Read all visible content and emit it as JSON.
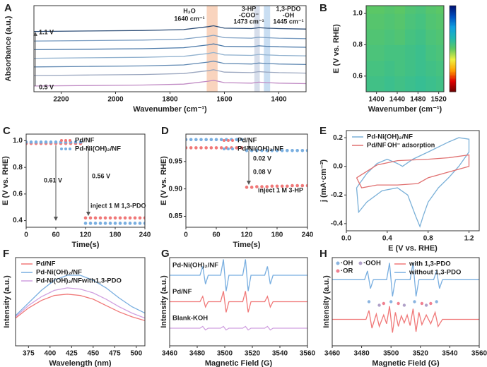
{
  "chart_data": [
    {
      "type": "line",
      "panel": "A",
      "xlabel": "Wavenumber (cm⁻¹)",
      "ylabel": "Absorbance (a.u.)",
      "xlim": [
        2300,
        1300
      ],
      "xticks": [
        2200,
        2000,
        1800,
        1600,
        1400
      ],
      "ylim": [
        0,
        9
      ],
      "x": [
        2300,
        2100,
        1900,
        1750,
        1660,
        1640,
        1600,
        1500,
        1473,
        1445,
        1400,
        1300
      ],
      "highlights": [
        {
          "x": [
            1665,
            1625
          ],
          "color": "#f7c9ae"
        },
        {
          "x": [
            1490,
            1470
          ],
          "color": "#cdd6e6"
        },
        {
          "x": [
            1455,
            1432
          ],
          "color": "#bcd6ef"
        }
      ],
      "series": [
        {
          "color": "#c08ac4",
          "values": [
            0.6,
            0.65,
            0.7,
            0.8,
            1.1,
            1.2,
            0.95,
            0.9,
            1.0,
            0.95,
            0.9,
            0.85
          ]
        },
        {
          "color": "#9aa6bf",
          "values": [
            1.7,
            1.75,
            1.8,
            1.9,
            2.2,
            2.3,
            2.05,
            2.0,
            2.1,
            2.05,
            2.0,
            1.95
          ]
        },
        {
          "color": "#5f88b2",
          "values": [
            2.6,
            2.65,
            2.7,
            2.8,
            3.1,
            3.2,
            2.95,
            2.9,
            3.0,
            2.95,
            2.9,
            2.85
          ]
        },
        {
          "color": "#92b2cf",
          "values": [
            3.5,
            3.55,
            3.6,
            3.7,
            4.0,
            4.1,
            3.85,
            3.8,
            3.9,
            3.85,
            3.8,
            3.75
          ]
        },
        {
          "color": "#4a78a8",
          "values": [
            4.4,
            4.45,
            4.5,
            4.6,
            4.9,
            5.0,
            4.75,
            4.7,
            4.8,
            4.75,
            4.7,
            4.65
          ]
        },
        {
          "color": "#7c9ec2",
          "values": [
            5.3,
            5.35,
            5.4,
            5.5,
            5.8,
            5.9,
            5.65,
            5.6,
            5.7,
            5.65,
            5.6,
            5.55
          ]
        },
        {
          "color": "#2f4f78",
          "values": [
            6.3,
            6.35,
            6.4,
            6.5,
            6.8,
            6.9,
            6.65,
            6.6,
            6.7,
            6.65,
            6.6,
            6.55
          ]
        }
      ],
      "annotations": [
        {
          "text": "H₂O",
          "color": "#222"
        },
        {
          "text": "1640 cm⁻¹",
          "color": "#222"
        },
        {
          "text": "3-HP",
          "color": "#222"
        },
        {
          "text": "-COO⁻",
          "color": "#222"
        },
        {
          "text": "1473 cm⁻¹",
          "color": "#222"
        },
        {
          "text": "1,3-PDO",
          "color": "#222"
        },
        {
          "text": "-OH",
          "color": "#222"
        },
        {
          "text": "1445 cm⁻¹",
          "color": "#222"
        },
        {
          "text": "1.1 V",
          "color": "#222"
        },
        {
          "text": "0.5 V",
          "color": "#222"
        }
      ]
    },
    {
      "type": "heatmap",
      "panel": "B",
      "xlabel": "Wavenumber (cm⁻¹)",
      "ylabel": "E (V vs. RHE)",
      "xlim": [
        1380,
        1530
      ],
      "xticks": [
        1400,
        1440,
        1480,
        1520
      ],
      "ylim": [
        0.5,
        1.05
      ],
      "yticks": [
        0.6,
        0.8,
        {
          "value": 1.0,
          "label": "1.0"
        }
      ],
      "zlim": [
        0,
        1
      ],
      "colors": [
        "#6a0000",
        "#e00000",
        "#ffa000",
        "#f0f040",
        "#60c860",
        "#20b8b0",
        "#10a0e0",
        "#0050c0",
        "#001070"
      ],
      "x": [
        1385,
        1405,
        1425,
        1445,
        1465,
        1485,
        1505,
        1525
      ],
      "y": [
        0.55,
        0.65,
        0.75,
        0.85,
        0.95,
        1.05
      ],
      "z": [
        [
          0.56,
          0.56,
          0.57,
          0.56,
          0.57,
          0.58,
          0.57,
          0.56
        ],
        [
          0.55,
          0.55,
          0.56,
          0.55,
          0.56,
          0.57,
          0.56,
          0.55
        ],
        [
          0.54,
          0.54,
          0.55,
          0.55,
          0.56,
          0.57,
          0.55,
          0.54
        ],
        [
          0.53,
          0.53,
          0.54,
          0.53,
          0.55,
          0.56,
          0.54,
          0.53
        ],
        [
          0.52,
          0.52,
          0.53,
          0.52,
          0.54,
          0.55,
          0.53,
          0.52
        ],
        [
          0.51,
          0.51,
          0.52,
          0.51,
          0.53,
          0.54,
          0.52,
          0.51
        ]
      ]
    },
    {
      "type": "scatter",
      "panel": "C",
      "xlabel": "Time(s)",
      "ylabel": "E (V vs. RHE)",
      "legend": "upper right",
      "xlim": [
        0,
        240
      ],
      "xticks": [
        0,
        60,
        120,
        180,
        240
      ],
      "ylim": [
        0.35,
        1.05
      ],
      "yticks": [
        0.4,
        0.6,
        0.8,
        {
          "value": 1.0,
          "label": "1.0"
        }
      ],
      "x": [
        0,
        10,
        20,
        30,
        40,
        50,
        60,
        70,
        80,
        90,
        100,
        110,
        120,
        130,
        140,
        150,
        160,
        170,
        180,
        190,
        200,
        210,
        220,
        230,
        240
      ],
      "series": [
        {
          "name": "Pd/NF",
          "color": "#f07878",
          "values": [
            0.98,
            0.98,
            0.98,
            0.98,
            0.98,
            0.98,
            0.98,
            0.98,
            0.98,
            0.98,
            0.98,
            0.98,
            0.42,
            0.42,
            0.42,
            0.42,
            0.42,
            0.42,
            0.42,
            0.42,
            0.42,
            0.42,
            0.42,
            0.42,
            0.42
          ]
        },
        {
          "name": "Pd-Ni(OH)₂/NF",
          "color": "#78aee0",
          "values": [
            0.99,
            0.99,
            0.99,
            0.99,
            0.99,
            0.99,
            0.99,
            0.99,
            0.99,
            0.99,
            0.99,
            0.99,
            0.38,
            0.38,
            0.38,
            0.38,
            0.38,
            0.38,
            0.38,
            0.38,
            0.38,
            0.38,
            0.38,
            0.38,
            0.38
          ]
        }
      ],
      "annotations": [
        {
          "text": "0.61 V",
          "color": "#78aee0"
        },
        {
          "text": "0.56 V",
          "color": "#f07878"
        },
        {
          "text": "inject 1 M 1,3-PDO",
          "color": "#f07878"
        }
      ]
    },
    {
      "type": "scatter",
      "panel": "D",
      "xlabel": "Time(s)",
      "ylabel": "E (V vs. RHE)",
      "legend": "upper right",
      "xlim": [
        0,
        240
      ],
      "xticks": [
        0,
        60,
        120,
        180,
        240
      ],
      "ylim": [
        0.83,
        1.0
      ],
      "yticks": [
        0.85,
        {
          "value": 0.9,
          "label": "0.90"
        },
        0.95
      ],
      "x": [
        0,
        10,
        20,
        30,
        40,
        50,
        60,
        70,
        80,
        90,
        100,
        110,
        120,
        130,
        140,
        150,
        160,
        170,
        180,
        190,
        200,
        210,
        220,
        230,
        240
      ],
      "series": [
        {
          "name": "Pd/NF",
          "color": "#f07878",
          "values": [
            0.975,
            0.975,
            0.975,
            0.975,
            0.975,
            0.975,
            0.975,
            0.975,
            0.975,
            0.975,
            0.975,
            0.975,
            0.903,
            0.903,
            0.904,
            0.904,
            0.904,
            0.905,
            0.905,
            0.905,
            0.905,
            0.906,
            0.906,
            0.906,
            0.906
          ]
        },
        {
          "name": "Pd-Ni(OH)₂/NF",
          "color": "#78aee0",
          "values": [
            0.99,
            0.99,
            0.99,
            0.99,
            0.99,
            0.99,
            0.99,
            0.99,
            0.99,
            0.99,
            0.99,
            0.99,
            0.97,
            0.97,
            0.97,
            0.97,
            0.97,
            0.97,
            0.97,
            0.97,
            0.97,
            0.97,
            0.97,
            0.97,
            0.97
          ]
        }
      ],
      "annotations": [
        {
          "text": "0.02 V",
          "color": "#78aee0"
        },
        {
          "text": "0.08 V",
          "color": "#f07878"
        },
        {
          "text": "inject 1 M 3-HP",
          "color": "#f07878"
        }
      ]
    },
    {
      "type": "line",
      "panel": "E",
      "xlabel": "E (V vs. RHE)",
      "ylabel": "j (mA·cm⁻²)",
      "legend": "upper left",
      "xlim": [
        0,
        1.3
      ],
      "xticks": [
        {
          "value": 0,
          "label": "0.0"
        },
        0.4,
        0.8,
        1.2
      ],
      "ylim": [
        -0.45,
        0.25
      ],
      "yticks": [
        -0.4,
        -0.2,
        {
          "value": 0,
          "label": "0.0"
        },
        0.2
      ],
      "series": [
        {
          "name": "Pd-Ni(OH)₂/NF",
          "color": "#7ab0d8",
          "x": [
            0.1,
            0.2,
            0.3,
            0.4,
            0.5,
            0.55,
            0.65,
            0.8,
            1.0,
            1.1,
            1.2,
            1.2,
            1.1,
            1.0,
            0.9,
            0.8,
            0.75,
            0.72,
            0.68,
            0.6,
            0.5,
            0.35,
            0.2,
            0.12,
            0.1
          ],
          "values": [
            -0.15,
            -0.05,
            0.02,
            0.05,
            0.02,
            0.0,
            0.05,
            0.1,
            0.17,
            0.2,
            0.19,
            0.1,
            0.0,
            -0.08,
            -0.15,
            -0.25,
            -0.35,
            -0.42,
            -0.35,
            -0.2,
            -0.15,
            -0.17,
            -0.25,
            -0.32,
            -0.15
          ]
        },
        {
          "name": "Pd/NF",
          "color": "#e07070",
          "x": [
            0.1,
            0.3,
            0.5,
            0.8,
            1.0,
            1.2,
            1.2,
            1.0,
            0.8,
            0.7,
            0.5,
            0.3,
            0.15,
            0.1
          ],
          "values": [
            -0.08,
            0.01,
            0.04,
            0.05,
            0.06,
            0.08,
            0.0,
            -0.04,
            -0.08,
            -0.12,
            -0.13,
            -0.13,
            -0.15,
            -0.08
          ]
        }
      ],
      "annotations": [
        {
          "text": "OH⁻ adsorption",
          "color": "#222"
        }
      ]
    },
    {
      "type": "line",
      "panel": "F",
      "xlabel": "Wavelength (nm)",
      "ylabel": "Intensity (a.u.)",
      "legend": "upper left",
      "xlim": [
        360,
        510
      ],
      "xticks": [
        375,
        400,
        425,
        450,
        475,
        500
      ],
      "ylim": [
        0,
        7
      ],
      "x": [
        360,
        375,
        390,
        405,
        420,
        435,
        450,
        465,
        480,
        495,
        510
      ],
      "series": [
        {
          "name": "Pd/NF",
          "color": "#f07878",
          "values": [
            2.2,
            3.0,
            3.6,
            4.0,
            4.1,
            4.0,
            3.7,
            3.2,
            2.7,
            2.3,
            2.0
          ]
        },
        {
          "name": "Pd-Ni(OH)₂/NF",
          "color": "#78aee0",
          "values": [
            2.4,
            3.4,
            4.4,
            5.2,
            5.6,
            5.6,
            5.2,
            4.6,
            3.8,
            3.1,
            2.6
          ]
        },
        {
          "name": "Pd-Ni(OH)₂/NFwith1,3-PDO",
          "color": "#d0a0e0",
          "values": [
            2.3,
            3.2,
            3.9,
            4.4,
            4.6,
            4.5,
            4.2,
            3.7,
            3.1,
            2.6,
            2.2
          ]
        }
      ]
    },
    {
      "type": "line",
      "panel": "G",
      "xlabel": "Magnetic Field (G)",
      "ylabel": "Intensity (a.u.)",
      "legend": "inline",
      "xlim": [
        3460,
        3560
      ],
      "xticks": [
        3460,
        3480,
        3500,
        3520,
        3540,
        3560
      ],
      "ylim": [
        0,
        10
      ],
      "x": [
        3460,
        3482,
        3484,
        3486,
        3488,
        3497,
        3499,
        3501,
        3503,
        3513,
        3515,
        3517,
        3519,
        3529,
        3531,
        3533,
        3535,
        3560
      ],
      "series": [
        {
          "name": "Pd-Ni(OH)₂/NF",
          "color": "#78aee0",
          "values": [
            8,
            8,
            9,
            7,
            8,
            8,
            9.8,
            6.2,
            8,
            8,
            9.8,
            6.2,
            8,
            8,
            9,
            7,
            8,
            8
          ]
        },
        {
          "name": "Pd/NF",
          "color": "#f07878",
          "values": [
            5,
            5,
            5.6,
            4.4,
            5,
            5,
            6.2,
            3.8,
            5,
            5,
            6.2,
            3.8,
            5,
            5,
            5.6,
            4.4,
            5,
            5
          ]
        },
        {
          "name": "Blank-KOH",
          "color": "#d0a0e0",
          "values": [
            2,
            2,
            2.2,
            1.8,
            2,
            2,
            2.2,
            1.8,
            2,
            2,
            2.2,
            1.8,
            2,
            2,
            2.2,
            1.8,
            2,
            2
          ]
        }
      ]
    },
    {
      "type": "line",
      "panel": "H",
      "xlabel": "Magnetic Field (G)",
      "ylabel": "Intensity (a.u.)",
      "legend": "upper right",
      "xlim": [
        3460,
        3560
      ],
      "xticks": [
        3460,
        3480,
        3500,
        3520,
        3540,
        3560
      ],
      "ylim": [
        0,
        10
      ],
      "series": [
        {
          "name": "with 1,3-PDO",
          "color": "#f07878",
          "x": [
            3460,
            3483,
            3485,
            3487,
            3490,
            3492,
            3495,
            3497,
            3499,
            3501,
            3503,
            3505,
            3507,
            3509,
            3511,
            3513,
            3515,
            3517,
            3519,
            3521,
            3524,
            3527,
            3530,
            3532,
            3535,
            3560
          ],
          "values": [
            3,
            3,
            4,
            2,
            3.6,
            2.2,
            3.5,
            2.5,
            4.5,
            1.5,
            3.8,
            2.2,
            3.4,
            2.6,
            3.5,
            2.3,
            4.2,
            1.6,
            3.8,
            2.4,
            3.5,
            2.5,
            3.8,
            2.2,
            3,
            3
          ]
        },
        {
          "name": "without 1,3-PDO",
          "color": "#78aee0",
          "x": [
            3460,
            3482,
            3484,
            3486,
            3488,
            3497,
            3499,
            3501,
            3503,
            3513,
            3515,
            3517,
            3519,
            3529,
            3531,
            3533,
            3535,
            3560
          ],
          "values": [
            7.5,
            7.5,
            8.5,
            6.5,
            7.5,
            7.5,
            9.4,
            5.6,
            7.5,
            7.5,
            9.4,
            5.6,
            7.5,
            7.5,
            8.5,
            6.5,
            7.5,
            7.5
          ]
        }
      ],
      "markers": [
        {
          "name": "·OH",
          "color": "#8ab4e0",
          "x": [
            3485,
            3500,
            3516,
            3531
          ],
          "y": [
            5,
            5,
            5,
            5
          ]
        },
        {
          "name": "·OOH",
          "color": "#b0a0c8",
          "x": [
            3492,
            3509,
            3524
          ],
          "y": [
            4.6,
            4.6,
            4.6
          ]
        },
        {
          "name": "·OR",
          "color": "#f08090",
          "x": [
            3495,
            3505,
            3521,
            3527
          ],
          "y": [
            4.8,
            4.8,
            4.8,
            4.8
          ]
        }
      ]
    }
  ]
}
